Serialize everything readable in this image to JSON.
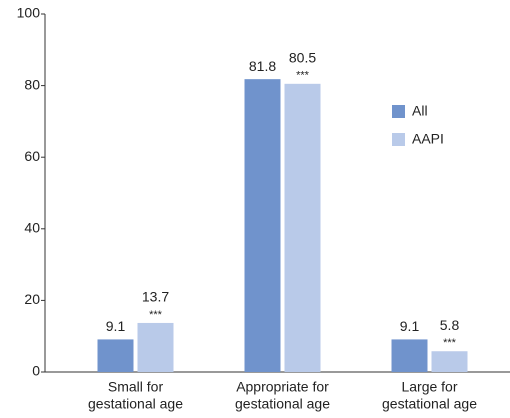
{
  "chart_data": {
    "type": "bar",
    "categories": [
      [
        "Small for",
        "gestational age"
      ],
      [
        "Appropriate for",
        "gestational age"
      ],
      [
        "Large for",
        "gestational age"
      ]
    ],
    "series": [
      {
        "name": "All",
        "color": "#7093cc",
        "values": [
          9.1,
          81.8,
          9.1
        ]
      },
      {
        "name": "AAPI",
        "color": "#b9cae9",
        "values": [
          13.7,
          80.5,
          5.8
        ],
        "annotations": [
          "***",
          "***",
          "***"
        ]
      }
    ],
    "ylim": [
      0,
      100
    ],
    "yticks": [
      0,
      20,
      40,
      60,
      80,
      100
    ],
    "grid": false,
    "legend": "right"
  }
}
